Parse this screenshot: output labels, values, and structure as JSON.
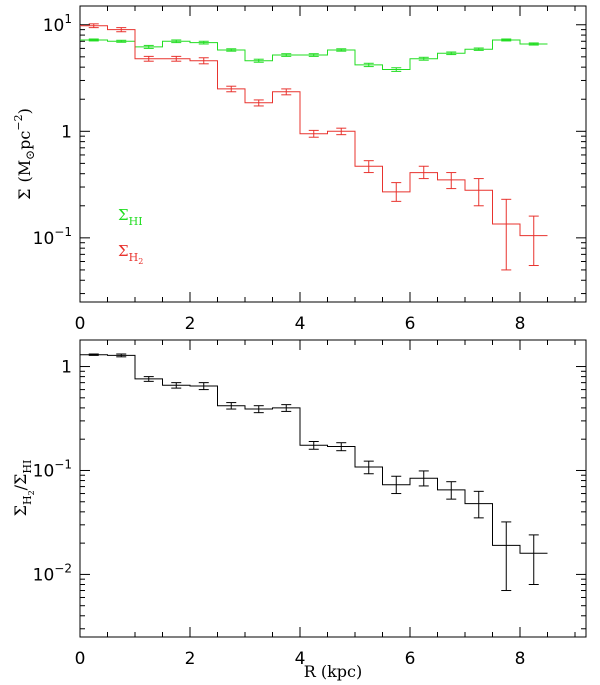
{
  "chart_data": [
    {
      "type": "line",
      "style": "step",
      "yscale": "log",
      "xlim": [
        0,
        9.2
      ],
      "ylim": [
        0.025,
        15
      ],
      "xticks": [
        "0",
        "2",
        "4",
        "6",
        "8"
      ],
      "xtick_values": [
        0,
        2,
        4,
        6,
        8
      ],
      "yticks_major": [
        {
          "value": 10,
          "base": "10",
          "exp": "1"
        },
        {
          "value": 1,
          "base": "1",
          "exp": ""
        },
        {
          "value": 0.1,
          "base": "10",
          "exp": "−1"
        }
      ],
      "ylabel": {
        "symbol": "Σ",
        "open": "(M",
        "sun": "⊙",
        "unit": "pc",
        "exp": "−2",
        "close": ")"
      },
      "legend": [
        {
          "symbol": "Σ",
          "sub": "HI",
          "color": "#22dd22"
        },
        {
          "symbol": "Σ",
          "sub": "H",
          "subsub": "2",
          "color": "#e8332e"
        }
      ],
      "bin_width": 0.5,
      "x": [
        0.25,
        0.75,
        1.25,
        1.75,
        2.25,
        2.75,
        3.25,
        3.75,
        4.25,
        4.75,
        5.25,
        5.75,
        6.25,
        6.75,
        7.25,
        7.75,
        8.25
      ],
      "series": [
        {
          "name": "Σ_HI",
          "color": "#22dd22",
          "values": [
            7.2,
            7.0,
            6.2,
            7.0,
            6.8,
            5.8,
            4.6,
            5.2,
            5.2,
            5.8,
            4.2,
            3.8,
            4.8,
            5.4,
            5.9,
            7.2,
            6.6
          ],
          "errors": [
            0.15,
            0.15,
            0.2,
            0.2,
            0.2,
            0.15,
            0.15,
            0.15,
            0.15,
            0.15,
            0.15,
            0.15,
            0.15,
            0.15,
            0.15,
            0.15,
            0.15
          ]
        },
        {
          "name": "Σ_H2",
          "color": "#e8332e",
          "values": [
            9.8,
            9.0,
            4.8,
            4.8,
            4.6,
            2.5,
            1.85,
            2.35,
            0.95,
            1.0,
            0.47,
            0.27,
            0.41,
            0.35,
            0.28,
            0.135,
            0.105
          ],
          "err_lo": [
            0.4,
            0.4,
            0.25,
            0.25,
            0.3,
            0.15,
            0.12,
            0.15,
            0.07,
            0.07,
            0.06,
            0.05,
            0.05,
            0.06,
            0.08,
            0.085,
            0.05
          ],
          "err_hi": [
            0.4,
            0.4,
            0.25,
            0.25,
            0.3,
            0.15,
            0.12,
            0.15,
            0.07,
            0.07,
            0.06,
            0.06,
            0.06,
            0.06,
            0.08,
            0.095,
            0.055
          ]
        }
      ]
    },
    {
      "type": "line",
      "style": "step",
      "yscale": "log",
      "xlim": [
        0,
        9.2
      ],
      "ylim": [
        0.0025,
        1.8
      ],
      "xticks": [
        "0",
        "2",
        "4",
        "6",
        "8"
      ],
      "xtick_values": [
        0,
        2,
        4,
        6,
        8
      ],
      "xlabel": "R (kpc)",
      "yticks_major": [
        {
          "value": 1,
          "base": "1",
          "exp": ""
        },
        {
          "value": 0.1,
          "base": "10",
          "exp": "−1"
        },
        {
          "value": 0.01,
          "base": "10",
          "exp": "−2"
        }
      ],
      "ylabel": {
        "num": "Σ",
        "num_sub": "H",
        "num_subsub": "2",
        "slash": "/",
        "den": "Σ",
        "den_sub": "HI"
      },
      "bin_width": 0.5,
      "x": [
        0.25,
        0.75,
        1.25,
        1.75,
        2.25,
        2.75,
        3.25,
        3.75,
        4.25,
        4.75,
        5.25,
        5.75,
        6.25,
        6.75,
        7.25,
        7.75,
        8.25
      ],
      "series": [
        {
          "name": "Σ_H2/Σ_HI",
          "color": "#000000",
          "values": [
            1.3,
            1.28,
            0.76,
            0.66,
            0.65,
            0.42,
            0.39,
            0.4,
            0.175,
            0.17,
            0.108,
            0.073,
            0.084,
            0.065,
            0.048,
            0.019,
            0.016
          ],
          "err_lo": [
            0.02,
            0.04,
            0.04,
            0.04,
            0.05,
            0.03,
            0.03,
            0.03,
            0.015,
            0.015,
            0.015,
            0.013,
            0.013,
            0.012,
            0.013,
            0.012,
            0.008
          ],
          "err_hi": [
            0.02,
            0.04,
            0.04,
            0.04,
            0.05,
            0.03,
            0.03,
            0.03,
            0.015,
            0.015,
            0.015,
            0.015,
            0.015,
            0.013,
            0.015,
            0.013,
            0.008
          ]
        }
      ]
    }
  ]
}
